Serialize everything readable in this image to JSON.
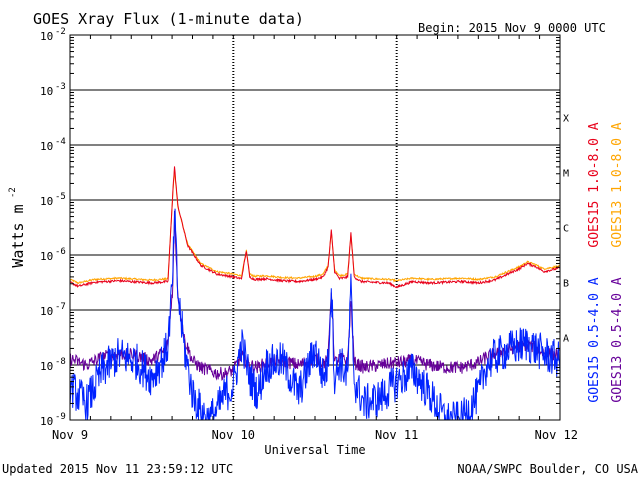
{
  "chart_data": {
    "type": "line",
    "title": "GOES Xray Flux (1-minute data)",
    "begin_label": "Begin:  2015 Nov 9 0000 UTC",
    "updated_label": "Updated 2015 Nov 11 23:59:12 UTC",
    "source_label": "NOAA/SWPC Boulder, CO USA",
    "xlabel": "Universal Time",
    "ylabel_main": "Watts m",
    "ylabel_exp": "-2",
    "y_scale": "log",
    "ylim": [
      1e-09,
      0.01
    ],
    "xlim_days": [
      0,
      3
    ],
    "x_ticks": [
      {
        "day": 0,
        "label": "Nov 9"
      },
      {
        "day": 1,
        "label": "Nov 10"
      },
      {
        "day": 2,
        "label": "Nov 11"
      },
      {
        "day": 3,
        "label": "Nov 12"
      }
    ],
    "y_ticks": [
      {
        "exp": -2,
        "label": "10",
        "sup": "-2"
      },
      {
        "exp": -3,
        "label": "10",
        "sup": "-3"
      },
      {
        "exp": -4,
        "label": "10",
        "sup": "-4"
      },
      {
        "exp": -5,
        "label": "10",
        "sup": "-5"
      },
      {
        "exp": -6,
        "label": "10",
        "sup": "-6"
      },
      {
        "exp": -7,
        "label": "10",
        "sup": "-7"
      },
      {
        "exp": -8,
        "label": "10",
        "sup": "-8"
      },
      {
        "exp": -9,
        "label": "10",
        "sup": "-9"
      }
    ],
    "flare_classes": [
      {
        "label": "X",
        "exp": -3.5
      },
      {
        "label": "M",
        "exp": -4.5
      },
      {
        "label": "C",
        "exp": -5.5
      },
      {
        "label": "B",
        "exp": -6.5
      },
      {
        "label": "A",
        "exp": -7.5
      }
    ],
    "series": [
      {
        "name": "GOES15 1.0-8.0 A",
        "color": "#e8001a",
        "noise": 0.02,
        "x": [
          0,
          0.05,
          0.15,
          0.3,
          0.5,
          0.6,
          0.63,
          0.64,
          0.66,
          0.72,
          0.8,
          0.9,
          1.0,
          1.05,
          1.08,
          1.1,
          1.13,
          1.2,
          1.3,
          1.4,
          1.5,
          1.55,
          1.58,
          1.6,
          1.62,
          1.65,
          1.7,
          1.72,
          1.74,
          1.78,
          1.85,
          1.95,
          2.0,
          2.1,
          2.2,
          2.3,
          2.4,
          2.5,
          2.6,
          2.7,
          2.75,
          2.8,
          2.85,
          2.9,
          3.0
        ],
        "y": [
          3.2e-07,
          2.7e-07,
          3.2e-07,
          3.4e-07,
          3.1e-07,
          3.3e-07,
          1.5e-05,
          4e-05,
          8e-06,
          1.5e-06,
          6.5e-07,
          4.5e-07,
          4e-07,
          3.7e-07,
          1.2e-06,
          4e-07,
          3.6e-07,
          3.7e-07,
          3.4e-07,
          3.3e-07,
          3.6e-07,
          4e-07,
          6e-07,
          2.8e-06,
          5e-07,
          3.7e-07,
          4e-07,
          2.5e-06,
          4e-07,
          3.3e-07,
          3.2e-07,
          3.1e-07,
          2.6e-07,
          3.3e-07,
          3.1e-07,
          3.2e-07,
          3.3e-07,
          3.1e-07,
          3.5e-07,
          4.8e-07,
          5.6e-07,
          7e-07,
          6.2e-07,
          5e-07,
          5.8e-07
        ]
      },
      {
        "name": "GOES13 1.0-8.0 A",
        "color": "#ffa500",
        "noise": 0.015,
        "x": [
          0,
          0.05,
          0.15,
          0.3,
          0.5,
          0.6,
          0.63,
          0.64,
          0.66,
          0.72,
          0.8,
          0.9,
          1.0,
          1.05,
          1.08,
          1.1,
          1.13,
          1.2,
          1.3,
          1.4,
          1.5,
          1.55,
          1.58,
          1.6,
          1.62,
          1.65,
          1.7,
          1.72,
          1.74,
          1.78,
          1.85,
          1.95,
          2.0,
          2.1,
          2.2,
          2.3,
          2.4,
          2.5,
          2.6,
          2.7,
          2.75,
          2.8,
          2.85,
          2.9,
          3.0
        ],
        "y": [
          3.6e-07,
          3.1e-07,
          3.6e-07,
          3.8e-07,
          3.5e-07,
          3.7e-07,
          1.4e-05,
          3.6e-05,
          7.5e-06,
          1.6e-06,
          7e-07,
          5e-07,
          4.5e-07,
          4.2e-07,
          1.2e-06,
          4.5e-07,
          4.1e-07,
          4.2e-07,
          3.9e-07,
          3.8e-07,
          4.1e-07,
          4.5e-07,
          6.5e-07,
          2.6e-06,
          5.5e-07,
          4.2e-07,
          4.5e-07,
          2.4e-06,
          4.5e-07,
          3.8e-07,
          3.7e-07,
          3.6e-07,
          3.4e-07,
          3.8e-07,
          3.6e-07,
          3.7e-07,
          3.8e-07,
          3.6e-07,
          4e-07,
          5.3e-07,
          6.1e-07,
          7.5e-07,
          6.7e-07,
          5.6e-07,
          6.3e-07
        ]
      },
      {
        "name": "GOES15 0.5-4.0 A",
        "color": "#0022ff",
        "noise": 0.35,
        "clip_min": 1e-09,
        "x": [
          0,
          0.1,
          0.2,
          0.3,
          0.4,
          0.5,
          0.58,
          0.6,
          0.63,
          0.64,
          0.66,
          0.7,
          0.75,
          0.8,
          0.85,
          0.9,
          0.95,
          1.0,
          1.05,
          1.1,
          1.15,
          1.2,
          1.3,
          1.4,
          1.5,
          1.55,
          1.58,
          1.6,
          1.62,
          1.65,
          1.7,
          1.72,
          1.74,
          1.8,
          1.9,
          2.0,
          2.1,
          2.2,
          2.3,
          2.4,
          2.5,
          2.55,
          2.6,
          2.7,
          2.8,
          2.9,
          3.0
        ],
        "y": [
          4e-09,
          2e-09,
          8e-09,
          1.5e-08,
          1.2e-08,
          6e-09,
          1.5e-08,
          2.5e-08,
          4e-07,
          6e-06,
          2e-07,
          2e-08,
          3e-09,
          1.5e-09,
          1e-09,
          1.5e-09,
          3e-09,
          4e-09,
          2.5e-08,
          6e-09,
          3e-09,
          1e-08,
          1.2e-08,
          3e-09,
          2e-08,
          6e-09,
          1e-08,
          3e-07,
          5e-09,
          1.2e-08,
          6e-09,
          2.5e-07,
          5e-09,
          2e-09,
          2.5e-09,
          5e-09,
          8e-09,
          3e-09,
          1e-09,
          1e-09,
          3e-09,
          1e-08,
          1.4e-08,
          2e-08,
          2.5e-08,
          1.6e-08,
          1.2e-08
        ]
      },
      {
        "name": "GOES13 0.5-4.0 A",
        "color": "#660099",
        "noise": 0.12,
        "x": [
          0,
          0.1,
          0.2,
          0.3,
          0.4,
          0.5,
          0.58,
          0.6,
          0.63,
          0.64,
          0.66,
          0.7,
          0.75,
          0.8,
          0.85,
          0.9,
          0.95,
          1.0,
          1.05,
          1.1,
          1.15,
          1.2,
          1.3,
          1.4,
          1.5,
          1.55,
          1.58,
          1.6,
          1.62,
          1.65,
          1.7,
          1.72,
          1.74,
          1.8,
          1.9,
          2.0,
          2.1,
          2.2,
          2.3,
          2.4,
          2.5,
          2.55,
          2.6,
          2.7,
          2.8,
          2.9,
          3.0
        ],
        "y": [
          1.3e-08,
          1e-08,
          1.4e-08,
          1.6e-08,
          1.5e-08,
          1.2e-08,
          1.8e-08,
          2.5e-08,
          3e-07,
          5.5e-06,
          2e-07,
          3e-08,
          1.2e-08,
          9e-09,
          8e-09,
          7e-09,
          7e-09,
          8e-09,
          1.5e-08,
          1e-08,
          9e-09,
          1.1e-08,
          1.2e-08,
          1e-08,
          1.3e-08,
          1.1e-08,
          1.2e-08,
          2.5e-07,
          1.1e-08,
          1.3e-08,
          1.2e-08,
          1.5e-07,
          1.1e-08,
          9e-09,
          1e-08,
          1.1e-08,
          1.2e-08,
          1e-08,
          9e-09,
          9e-09,
          1.1e-08,
          1.4e-08,
          1.6e-08,
          2e-08,
          2.4e-08,
          1.7e-08,
          1.5e-08
        ]
      }
    ]
  }
}
